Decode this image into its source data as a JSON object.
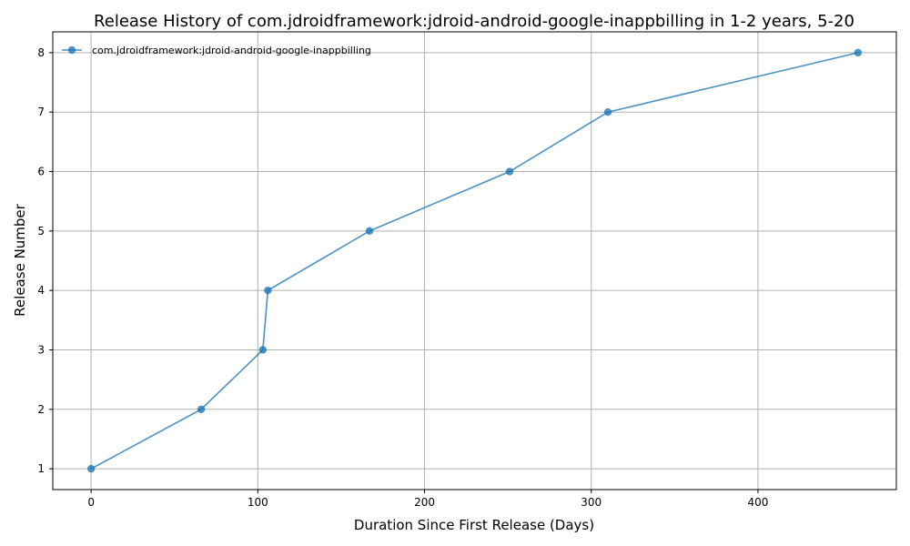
{
  "chart_data": {
    "type": "line",
    "title": "Release History of com.jdroidframework:jdroid-android-google-inappbilling in 1-2 years, 5-20",
    "xlabel": "Duration Since First Release (Days)",
    "ylabel": "Release Number",
    "xlim": [
      -23,
      483
    ],
    "ylim": [
      0.65,
      8.35
    ],
    "xticks": [
      0,
      100,
      200,
      300,
      400
    ],
    "yticks": [
      1,
      2,
      3,
      4,
      5,
      6,
      7,
      8
    ],
    "grid": true,
    "legend_position": "top-left",
    "series": [
      {
        "name": "com.jdroidframework:jdroid-android-google-inappbilling",
        "color": "#1f77b4",
        "x": [
          0,
          66,
          103,
          106,
          167,
          251,
          310,
          460
        ],
        "y": [
          1,
          2,
          3,
          4,
          5,
          6,
          7,
          8
        ]
      }
    ]
  }
}
